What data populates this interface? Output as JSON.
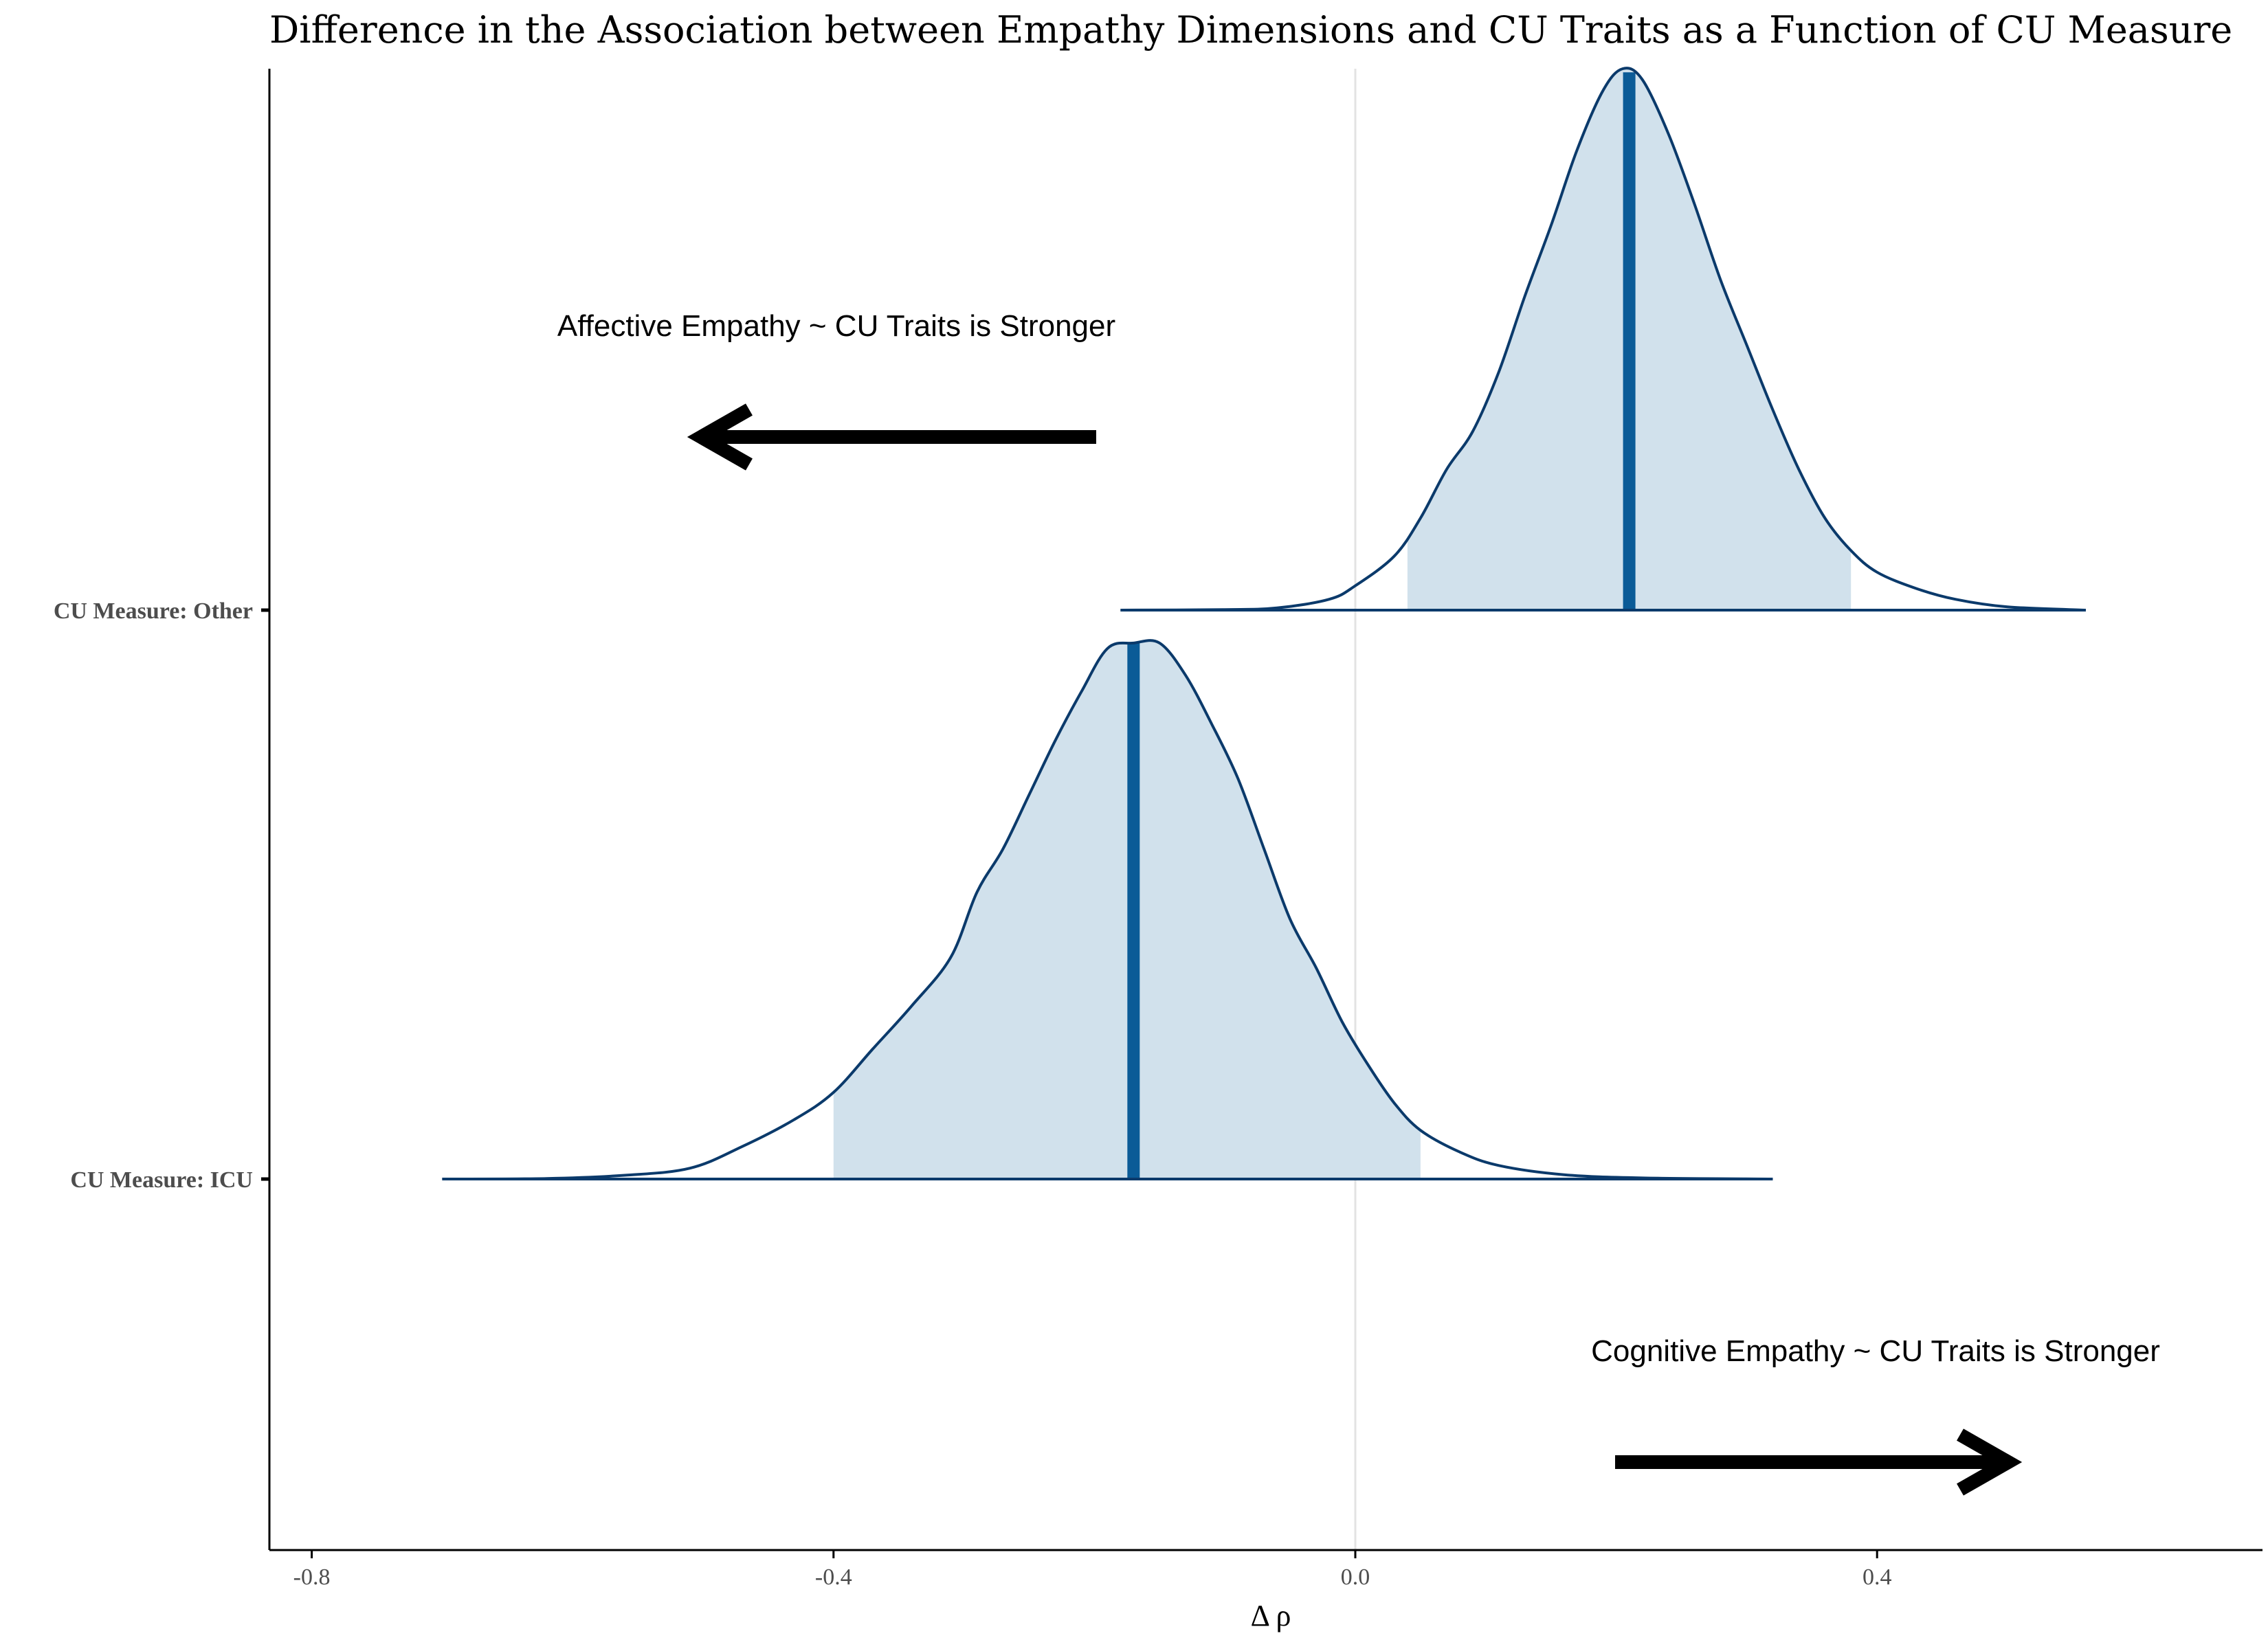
{
  "chart_data": {
    "type": "density",
    "title": "Difference in the Association between Empathy Dimensions and CU Traits as a Function of CU Measure",
    "xlabel": "Δ ρ",
    "ylabel": "",
    "xlim": [
      -0.84,
      0.7
    ],
    "x_ticks": [
      {
        "value": -0.8,
        "label": "-0.8"
      },
      {
        "value": -0.4,
        "label": "-0.4"
      },
      {
        "value": 0.0,
        "label": "0.0"
      },
      {
        "value": 0.4,
        "label": "0.4"
      }
    ],
    "reference_line": 0.0,
    "grid": false,
    "series": [
      {
        "category": "CU Measure: Other",
        "range": [
          -0.18,
          0.56
        ],
        "interval": [
          0.04,
          0.38
        ],
        "point_estimate": 0.21,
        "density": [
          [
            -0.18,
            0
          ],
          [
            -0.1,
            0.001
          ],
          [
            -0.06,
            0.004
          ],
          [
            -0.02,
            0.02
          ],
          [
            0.0,
            0.045
          ],
          [
            0.03,
            0.1
          ],
          [
            0.05,
            0.17
          ],
          [
            0.07,
            0.26
          ],
          [
            0.09,
            0.33
          ],
          [
            0.11,
            0.44
          ],
          [
            0.13,
            0.58
          ],
          [
            0.15,
            0.71
          ],
          [
            0.17,
            0.85
          ],
          [
            0.19,
            0.96
          ],
          [
            0.205,
            1.0
          ],
          [
            0.22,
            0.98
          ],
          [
            0.24,
            0.88
          ],
          [
            0.26,
            0.75
          ],
          [
            0.28,
            0.61
          ],
          [
            0.3,
            0.49
          ],
          [
            0.32,
            0.37
          ],
          [
            0.34,
            0.26
          ],
          [
            0.36,
            0.17
          ],
          [
            0.38,
            0.11
          ],
          [
            0.4,
            0.07
          ],
          [
            0.43,
            0.04
          ],
          [
            0.46,
            0.02
          ],
          [
            0.5,
            0.006
          ],
          [
            0.56,
            0
          ]
        ]
      },
      {
        "category": "CU Measure: ICU",
        "range": [
          -0.7,
          0.32
        ],
        "interval": [
          -0.4,
          0.05
        ],
        "point_estimate": -0.17,
        "density": [
          [
            -0.7,
            0
          ],
          [
            -0.62,
            0.001
          ],
          [
            -0.56,
            0.007
          ],
          [
            -0.51,
            0.02
          ],
          [
            -0.47,
            0.06
          ],
          [
            -0.43,
            0.11
          ],
          [
            -0.4,
            0.16
          ],
          [
            -0.37,
            0.24
          ],
          [
            -0.34,
            0.32
          ],
          [
            -0.31,
            0.41
          ],
          [
            -0.29,
            0.53
          ],
          [
            -0.27,
            0.61
          ],
          [
            -0.25,
            0.71
          ],
          [
            -0.23,
            0.81
          ],
          [
            -0.21,
            0.9
          ],
          [
            -0.19,
            0.98
          ],
          [
            -0.17,
            0.99
          ],
          [
            -0.15,
            0.99
          ],
          [
            -0.13,
            0.93
          ],
          [
            -0.11,
            0.84
          ],
          [
            -0.09,
            0.74
          ],
          [
            -0.07,
            0.61
          ],
          [
            -0.05,
            0.48
          ],
          [
            -0.03,
            0.39
          ],
          [
            -0.01,
            0.29
          ],
          [
            0.01,
            0.21
          ],
          [
            0.03,
            0.14
          ],
          [
            0.05,
            0.09
          ],
          [
            0.08,
            0.05
          ],
          [
            0.11,
            0.025
          ],
          [
            0.16,
            0.008
          ],
          [
            0.22,
            0.002
          ],
          [
            0.32,
            0
          ]
        ]
      }
    ],
    "annotations": [
      {
        "text": "Affective Empathy ~ CU Traits is Stronger",
        "direction": "left"
      },
      {
        "text": "Cognitive Empathy ~ CU Traits is Stronger",
        "direction": "right"
      }
    ],
    "colors": {
      "fill": "#d1e1ec",
      "outline": "#0b3a6b",
      "estimate": "#0b5b97",
      "reference": "#e3e3e3",
      "axis": "#000000",
      "arrow": "#000000"
    }
  }
}
